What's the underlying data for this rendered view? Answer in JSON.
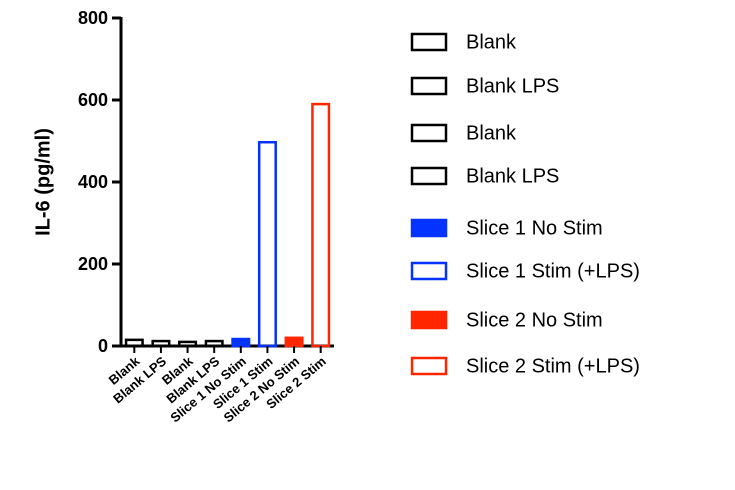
{
  "chart_data": {
    "type": "bar",
    "y_label": "IL-6 (pg/ml)",
    "categories": [
      "Blank",
      "Blank LPS",
      "Blank",
      "Blank LPS",
      "Slice 1 No Stim",
      "Slice 1 Stim",
      "Slice 2 No Stim",
      "Slice 2 Stim"
    ],
    "legend_labels": [
      "Blank",
      "Blank LPS",
      "Blank",
      "Blank LPS",
      "Slice 1 No Stim",
      "Slice 1 Stim (+LPS)",
      "Slice 2 No Stim",
      "Slice 2 Stim (+LPS)"
    ],
    "values": [
      15,
      12,
      10,
      12,
      17,
      497,
      20,
      590
    ],
    "colors": [
      "#000000",
      "#000000",
      "#000000",
      "#000000",
      "#0433ff",
      "#0433ff",
      "#ff2600",
      "#ff2600"
    ],
    "filled": [
      false,
      false,
      false,
      false,
      true,
      false,
      true,
      false
    ],
    "ylim": [
      0,
      800
    ],
    "yticks": [
      0,
      200,
      400,
      600,
      800
    ]
  }
}
